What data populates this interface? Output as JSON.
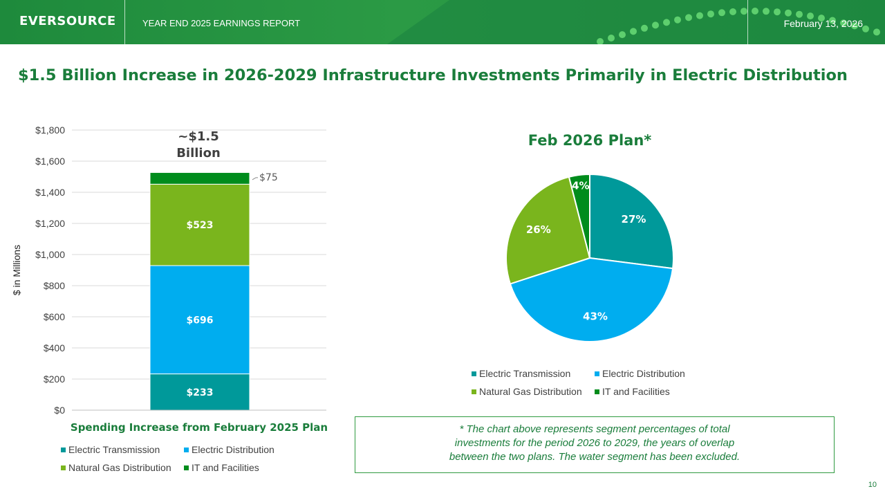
{
  "header": {
    "logo": "EVERSOURCE",
    "report_title": "YEAR END 2025 EARNINGS REPORT",
    "date": "February 13, 2026"
  },
  "slide_title": "$1.5 Billion Increase in 2026-2029 Infrastructure Investments Primarily in Electric Distribution",
  "colors": {
    "electric_transmission": "#00999a",
    "electric_distribution": "#00adef",
    "natural_gas_distribution": "#7ab51d",
    "it_and_facilities": "#008c1c",
    "brand_green": "#1a7d3b"
  },
  "chart_data": [
    {
      "type": "bar",
      "stacked": true,
      "title": "Spending Increase from February 2025 Plan",
      "ylabel": "$ in Millions",
      "ylim": [
        0,
        1800
      ],
      "yticks": [
        "$0",
        "$200",
        "$400",
        "$600",
        "$800",
        "$1,000",
        "$1,200",
        "$1,400",
        "$1,600",
        "$1,800"
      ],
      "ytick_values": [
        0,
        200,
        400,
        600,
        800,
        1000,
        1200,
        1400,
        1600,
        1800
      ],
      "categories": [
        ""
      ],
      "series": [
        {
          "name": "Electric Transmission",
          "values": [
            233
          ],
          "label": "$233"
        },
        {
          "name": "Electric Distribution",
          "values": [
            696
          ],
          "label": "$696"
        },
        {
          "name": "Natural Gas Distribution",
          "values": [
            523
          ],
          "label": "$523"
        },
        {
          "name": "IT and Facilities",
          "values": [
            75
          ],
          "label": "$75"
        }
      ],
      "annotation_line1": "~$1.5",
      "annotation_line2": "Billion",
      "grid": true,
      "legend": "bottom"
    },
    {
      "type": "pie",
      "title": "Feb 2026 Plan*",
      "slices": [
        {
          "name": "Electric Transmission",
          "value": 27,
          "label": "27%"
        },
        {
          "name": "Electric Distribution",
          "value": 43,
          "label": "43%"
        },
        {
          "name": "Natural Gas Distribution",
          "value": 26,
          "label": "26%"
        },
        {
          "name": "IT and Facilities",
          "value": 4,
          "label": "4%"
        }
      ],
      "legend": "bottom"
    }
  ],
  "legend_labels": [
    "Electric Transmission",
    "Electric Distribution",
    "Natural Gas Distribution",
    "IT and Facilities"
  ],
  "footnote_lines": [
    "* The chart above represents segment percentages of total",
    "investments for the period 2026 to 2029, the years of overlap",
    "between the two plans. The water segment has been excluded."
  ],
  "page_number": "10"
}
